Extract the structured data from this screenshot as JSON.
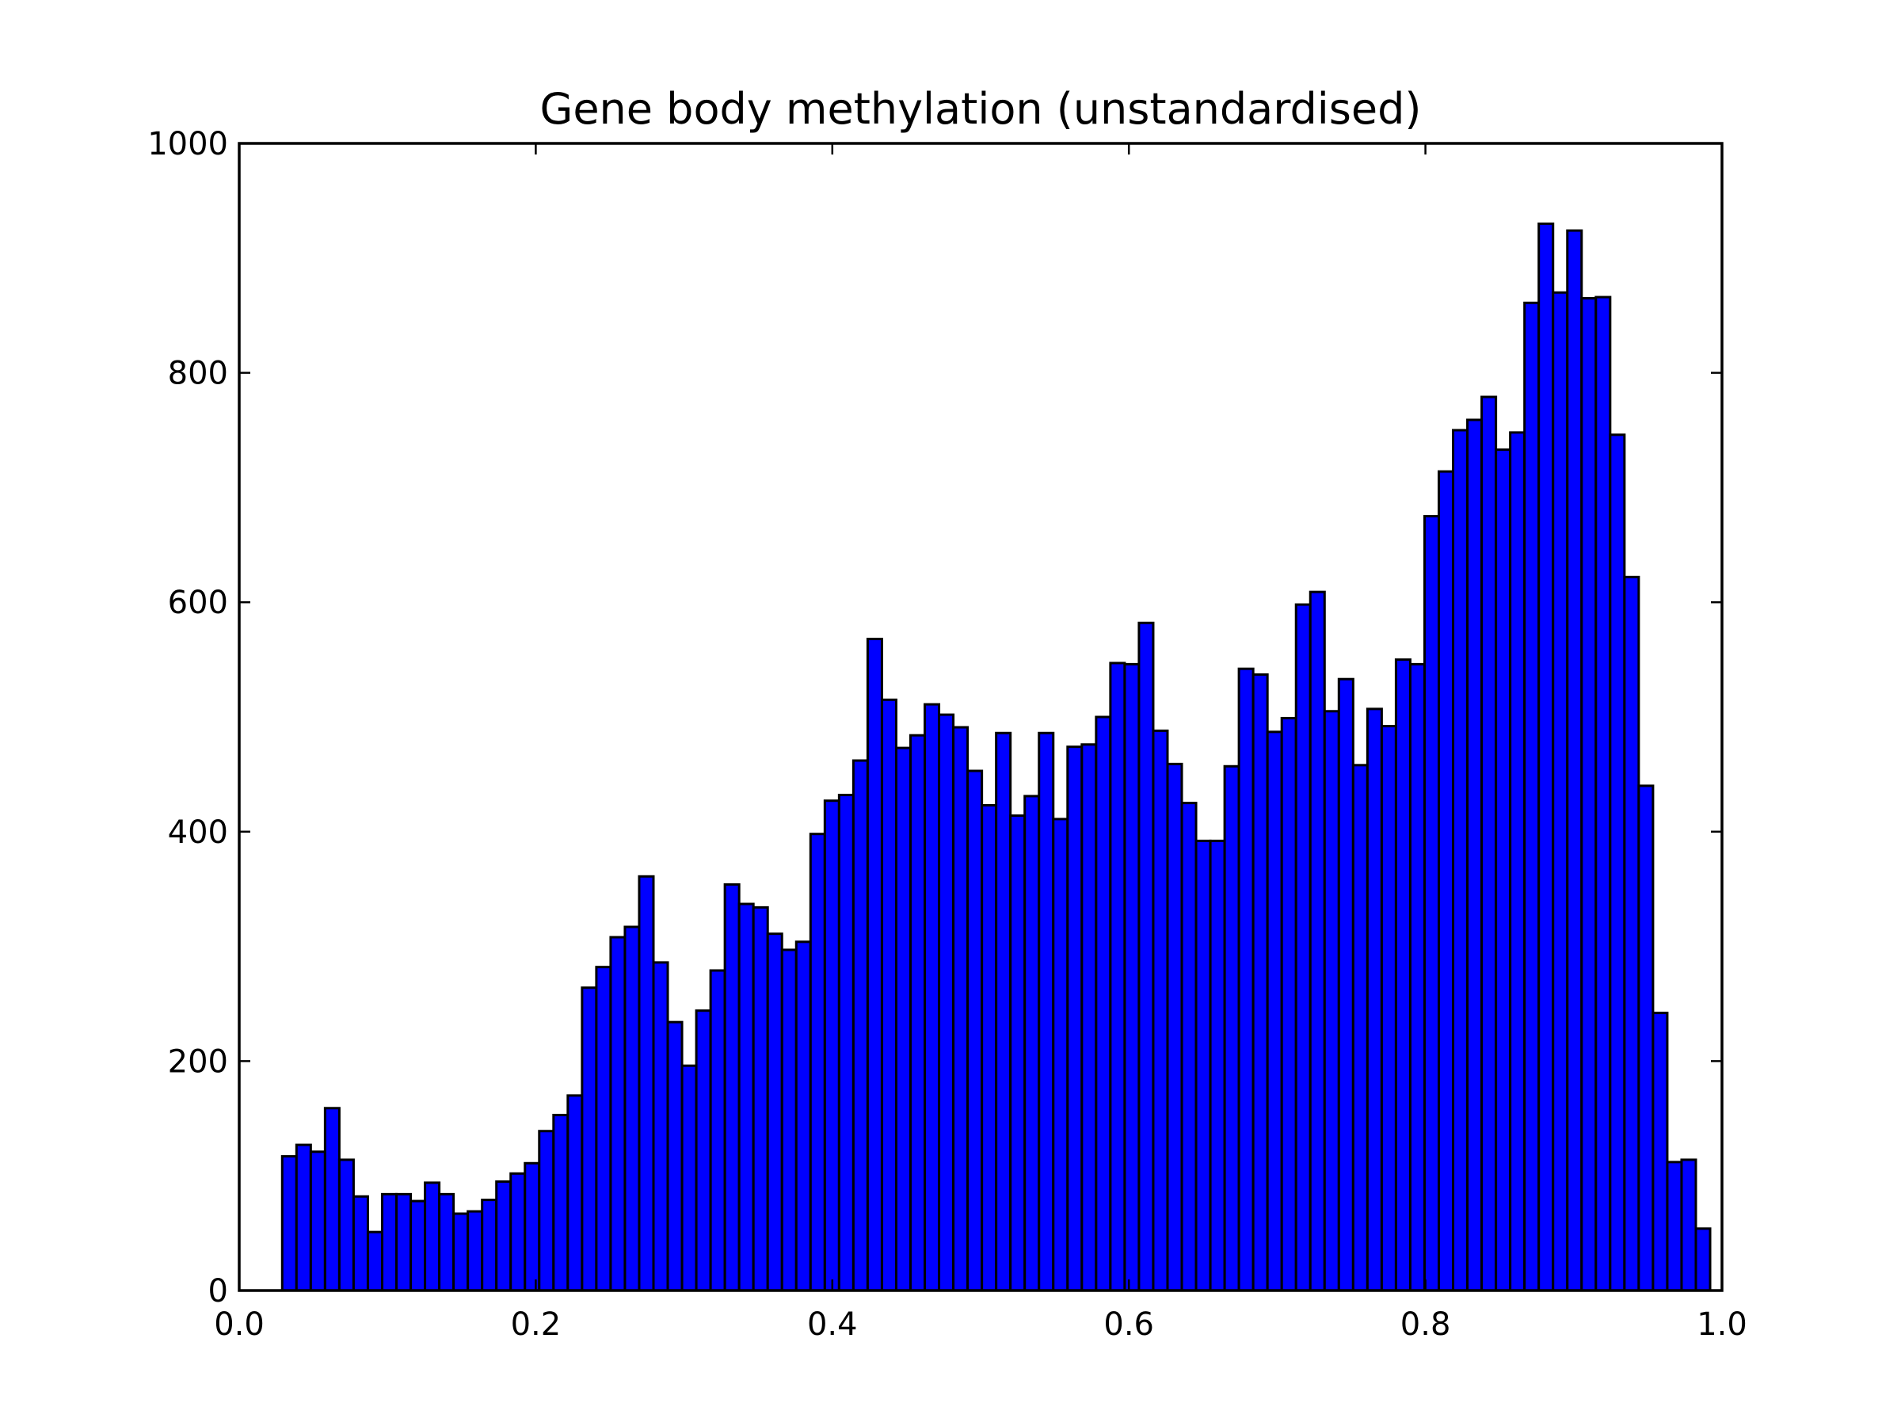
{
  "chart_data": {
    "type": "bar",
    "title": "Gene body methylation (unstandardised)",
    "xlabel": "",
    "ylabel": "",
    "xlim": [
      0.0,
      1.0
    ],
    "ylim": [
      0,
      1000
    ],
    "xticks": [
      "0.0",
      "0.2",
      "0.4",
      "0.6",
      "0.8",
      "1.0"
    ],
    "yticks": [
      "0",
      "200",
      "400",
      "600",
      "800",
      "1000"
    ],
    "xtick_values": [
      0.0,
      0.2,
      0.4,
      0.6,
      0.8,
      1.0
    ],
    "ytick_values": [
      0,
      200,
      400,
      600,
      800,
      1000
    ],
    "grid": false,
    "bar_color": "#0000ff",
    "edge_color": "#000000",
    "bins": {
      "start": 0.029,
      "width": 0.00963,
      "counts": [
        117,
        127,
        121,
        159,
        114,
        82,
        51,
        84,
        84,
        78,
        94,
        84,
        67,
        69,
        79,
        95,
        102,
        111,
        139,
        153,
        170,
        264,
        282,
        308,
        317,
        361,
        286,
        234,
        196,
        244,
        279,
        354,
        337,
        334,
        311,
        297,
        304,
        398,
        427,
        432,
        462,
        568,
        515,
        473,
        484,
        511,
        502,
        491,
        453,
        423,
        486,
        414,
        431,
        486,
        411,
        474,
        476,
        500,
        547,
        546,
        582,
        488,
        459,
        425,
        392,
        392,
        457,
        542,
        537,
        487,
        499,
        598,
        609,
        505,
        533,
        458,
        507,
        492,
        550,
        546,
        675,
        714,
        750,
        759,
        779,
        733,
        748,
        861,
        930,
        870,
        924,
        865,
        866,
        746,
        622,
        440,
        242,
        112,
        114,
        54
      ]
    }
  }
}
